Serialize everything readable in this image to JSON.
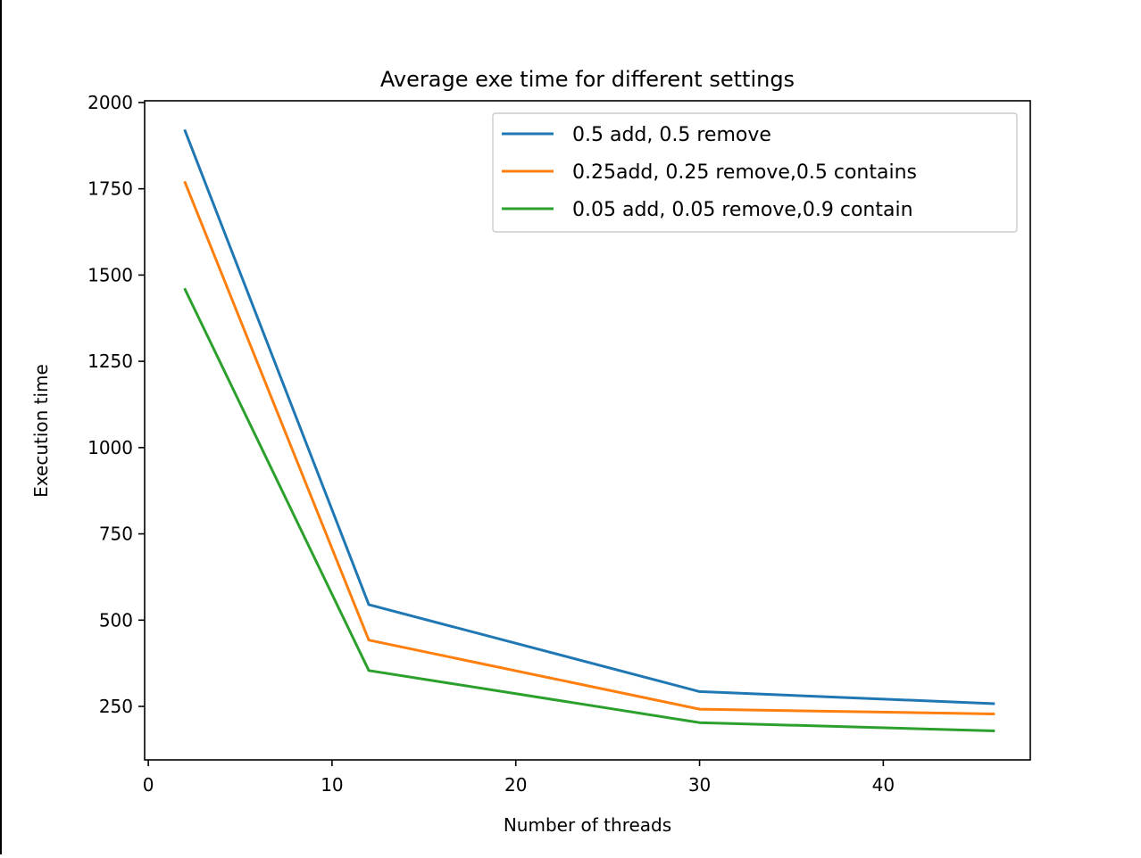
{
  "chart_data": {
    "type": "line",
    "title": "Average exe time for different settings",
    "xlabel": "Number of threads",
    "ylabel": "Execution time",
    "xlim": [
      -0.2,
      48.0
    ],
    "ylim": [
      95,
      2005
    ],
    "xticks": [
      0,
      10,
      20,
      30,
      40
    ],
    "yticks": [
      250,
      500,
      750,
      1000,
      1250,
      1500,
      1750,
      2000
    ],
    "grid": false,
    "legend_position": "top-right",
    "x": [
      2,
      12,
      30,
      46
    ],
    "series": [
      {
        "name": "0.5 add, 0.5 remove",
        "color": "#1f77b4",
        "values": [
          1918,
          545,
          293,
          258
        ]
      },
      {
        "name": "0.25add, 0.25 remove,0.5 contains",
        "color": "#ff7f0e",
        "values": [
          1768,
          442,
          242,
          228
        ]
      },
      {
        "name": "0.05 add, 0.05 remove,0.9 contain",
        "color": "#2ca02c",
        "values": [
          1458,
          354,
          203,
          179
        ]
      }
    ]
  }
}
